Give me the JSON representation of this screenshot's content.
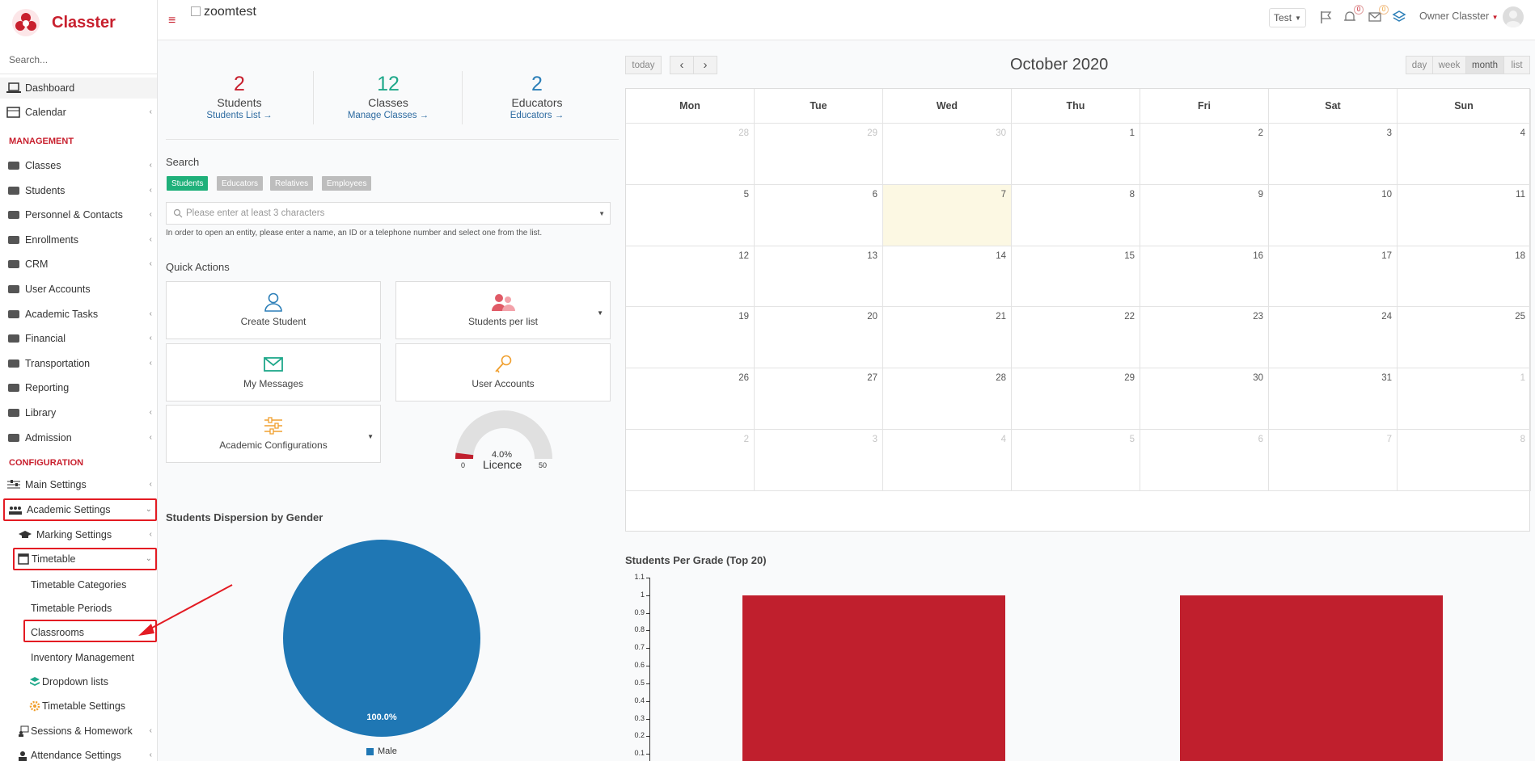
{
  "app": {
    "name": "Classter",
    "brand_alt": "zoomtest"
  },
  "sidebar": {
    "search_placeholder": "Search...",
    "dashboard": "Dashboard",
    "calendar": "Calendar",
    "management_heading": "MANAGEMENT",
    "management_items": [
      "Classes",
      "Students",
      "Personnel & Contacts",
      "Enrollments",
      "CRM",
      "User Accounts",
      "Academic Tasks",
      "Financial",
      "Transportation",
      "Reporting",
      "Library",
      "Admission"
    ],
    "configuration_heading": "CONFIGURATION",
    "main_settings": "Main Settings",
    "academic_settings": "Academic Settings",
    "marking_settings": "Marking Settings",
    "timetable": "Timetable",
    "timetable_children": [
      "Timetable Categories",
      "Timetable Periods",
      "Classrooms"
    ],
    "inventory_management": "Inventory Management",
    "dropdown_lists": "Dropdown lists",
    "timetable_settings": "Timetable Settings",
    "sessions_homework": "Sessions & Homework",
    "attendance_settings": "Attendance Settings"
  },
  "topbar": {
    "test_label": "Test",
    "notifications_count": "0",
    "messages_count": "0",
    "owner_name": "Owner Classter"
  },
  "stats": [
    {
      "value": "2",
      "label": "Students",
      "link": "Students List",
      "color": "#c8202e"
    },
    {
      "value": "12",
      "label": "Classes",
      "link": "Manage Classes",
      "color": "#1fa88a"
    },
    {
      "value": "2",
      "label": "Educators",
      "link": "Educators",
      "color": "#2c7fb8"
    }
  ],
  "search": {
    "title": "Search",
    "tabs": [
      "Students",
      "Educators",
      "Relatives",
      "Employees"
    ],
    "placeholder": "Please enter at least 3 characters",
    "hint": "In order to open an entity, please enter a name, an ID or a telephone number and select one from the list."
  },
  "quick_actions": {
    "title": "Quick Actions",
    "items": [
      "Create Student",
      "Students per list",
      "My Messages",
      "User Accounts",
      "Academic Configurations"
    ]
  },
  "licence_gauge": {
    "percent_label": "4.0%",
    "label": "Licence",
    "min": "0",
    "max": "50",
    "value": 2
  },
  "calendar": {
    "buttons": {
      "today": "today",
      "prev": "‹",
      "next": "›"
    },
    "views": [
      "day",
      "week",
      "month",
      "list"
    ],
    "active_view": "month",
    "title": "October 2020",
    "weekdays": [
      "Mon",
      "Tue",
      "Wed",
      "Thu",
      "Fri",
      "Sat",
      "Sun"
    ],
    "weeks": [
      [
        {
          "d": "28",
          "o": true
        },
        {
          "d": "29",
          "o": true
        },
        {
          "d": "30",
          "o": true
        },
        {
          "d": "1"
        },
        {
          "d": "2"
        },
        {
          "d": "3"
        },
        {
          "d": "4"
        }
      ],
      [
        {
          "d": "5"
        },
        {
          "d": "6"
        },
        {
          "d": "7",
          "t": true
        },
        {
          "d": "8"
        },
        {
          "d": "9"
        },
        {
          "d": "10"
        },
        {
          "d": "11"
        }
      ],
      [
        {
          "d": "12"
        },
        {
          "d": "13"
        },
        {
          "d": "14"
        },
        {
          "d": "15"
        },
        {
          "d": "16"
        },
        {
          "d": "17"
        },
        {
          "d": "18"
        }
      ],
      [
        {
          "d": "19"
        },
        {
          "d": "20"
        },
        {
          "d": "21"
        },
        {
          "d": "22"
        },
        {
          "d": "23"
        },
        {
          "d": "24"
        },
        {
          "d": "25"
        }
      ],
      [
        {
          "d": "26"
        },
        {
          "d": "27"
        },
        {
          "d": "28"
        },
        {
          "d": "29"
        },
        {
          "d": "30"
        },
        {
          "d": "31"
        },
        {
          "d": "1",
          "o": true
        }
      ],
      [
        {
          "d": "2",
          "o": true
        },
        {
          "d": "3",
          "o": true
        },
        {
          "d": "4",
          "o": true
        },
        {
          "d": "5",
          "o": true
        },
        {
          "d": "6",
          "o": true
        },
        {
          "d": "7",
          "o": true
        },
        {
          "d": "8",
          "o": true
        }
      ]
    ]
  },
  "chart_data": [
    {
      "type": "pie",
      "title": "Students Dispersion by Gender",
      "categories": [
        "Male"
      ],
      "values": [
        100.0
      ],
      "data_labels": [
        "100.0%"
      ],
      "colors": [
        "#1f77b4"
      ],
      "legend": "bottom"
    },
    {
      "type": "bar",
      "title": "Students Per Grade (Top 20)",
      "categories": [
        "",
        ""
      ],
      "values": [
        1,
        1
      ],
      "colors": [
        "#c01f2d"
      ],
      "ylim": [
        0,
        1.1
      ],
      "yticks": [
        "1.1",
        "1",
        "0.9",
        "0.8",
        "0.7",
        "0.6",
        "0.5",
        "0.4",
        "0.3",
        "0.2",
        "0.1"
      ]
    }
  ]
}
